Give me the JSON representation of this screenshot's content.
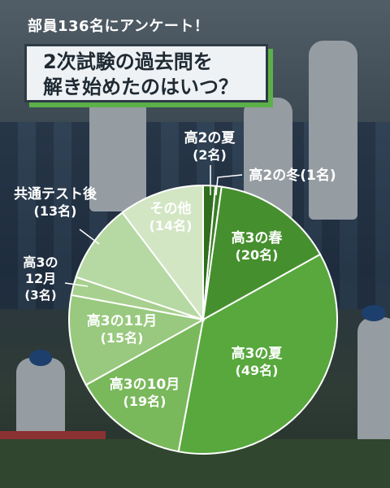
{
  "header": {
    "tag": "部員136名にアンケート！"
  },
  "title": {
    "line1": "2次試験の過去問を",
    "line2": "解き始めたのはいつ？"
  },
  "chart_data": {
    "type": "pie",
    "title": "2次試験の過去問を解き始めたのはいつ？",
    "total": 136,
    "unit": "名",
    "slices": [
      {
        "label": "高2の夏",
        "value": 2,
        "text": "(2名)",
        "color": "#2f6e1e"
      },
      {
        "label": "高2の冬",
        "value": 1,
        "text": "(1名)",
        "color": "#3a7d26"
      },
      {
        "label": "高3の春",
        "value": 20,
        "text": "(20名)",
        "color": "#468f2e"
      },
      {
        "label": "高3の夏",
        "value": 49,
        "text": "(49名)",
        "color": "#58a83d"
      },
      {
        "label": "高3の10月",
        "value": 19,
        "text": "(19名)",
        "color": "#7ab85c"
      },
      {
        "label": "高3の11月",
        "value": 15,
        "text": "(15名)",
        "color": "#98c97e"
      },
      {
        "label": "高3の12月",
        "value": 3,
        "text": "(3名)",
        "color": "#a7d08e"
      },
      {
        "label": "共通テスト後",
        "value": 13,
        "text": "(13名)",
        "color": "#b6d8a2"
      },
      {
        "label": "その他",
        "value": 14,
        "text": "(14名)",
        "color": "#d2e6c4"
      }
    ]
  }
}
